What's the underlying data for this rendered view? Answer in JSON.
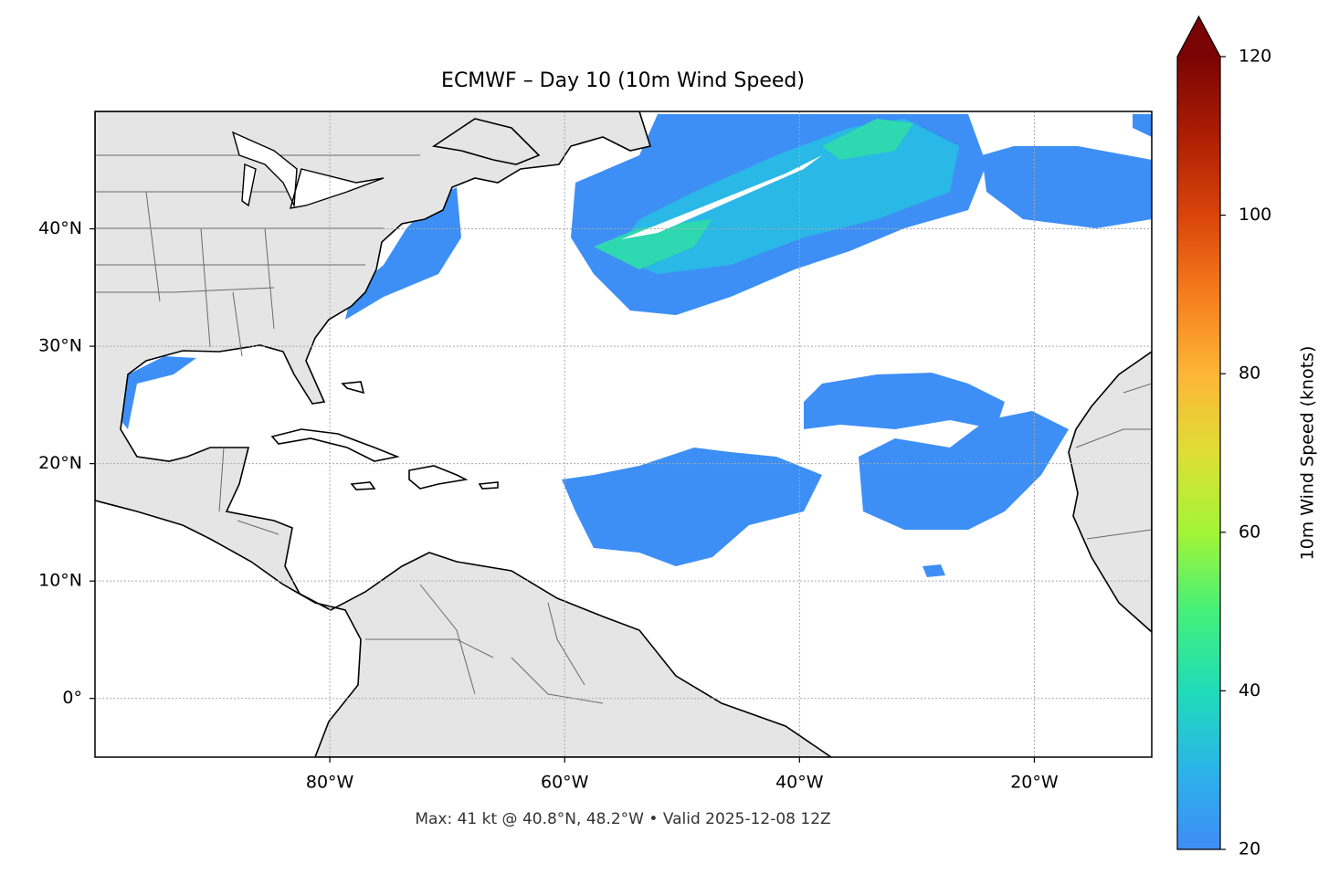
{
  "chart_data": {
    "type": "map",
    "title": "ECMWF – Day 10 (10m Wind Speed)",
    "xlim": [
      -100,
      -10
    ],
    "ylim": [
      -5,
      50
    ],
    "xticks": [
      {
        "value": -80,
        "label": "80°W"
      },
      {
        "value": -60,
        "label": "60°W"
      },
      {
        "value": -40,
        "label": "40°W"
      },
      {
        "value": -20,
        "label": "20°W"
      }
    ],
    "yticks": [
      {
        "value": 0,
        "label": "0°"
      },
      {
        "value": 10,
        "label": "10°N"
      },
      {
        "value": 20,
        "label": "20°N"
      },
      {
        "value": 30,
        "label": "30°N"
      },
      {
        "value": 40,
        "label": "40°N"
      }
    ],
    "grid": true,
    "footnote": "Max: 41 kt @ 40.8°N, 48.2°W • Valid 2025-12-08 12Z",
    "colorbar": {
      "label": "10m Wind Speed (knots)",
      "lim": [
        20,
        120
      ],
      "ticks": [
        20,
        40,
        60,
        80,
        100,
        120
      ],
      "extend": "max"
    }
  }
}
